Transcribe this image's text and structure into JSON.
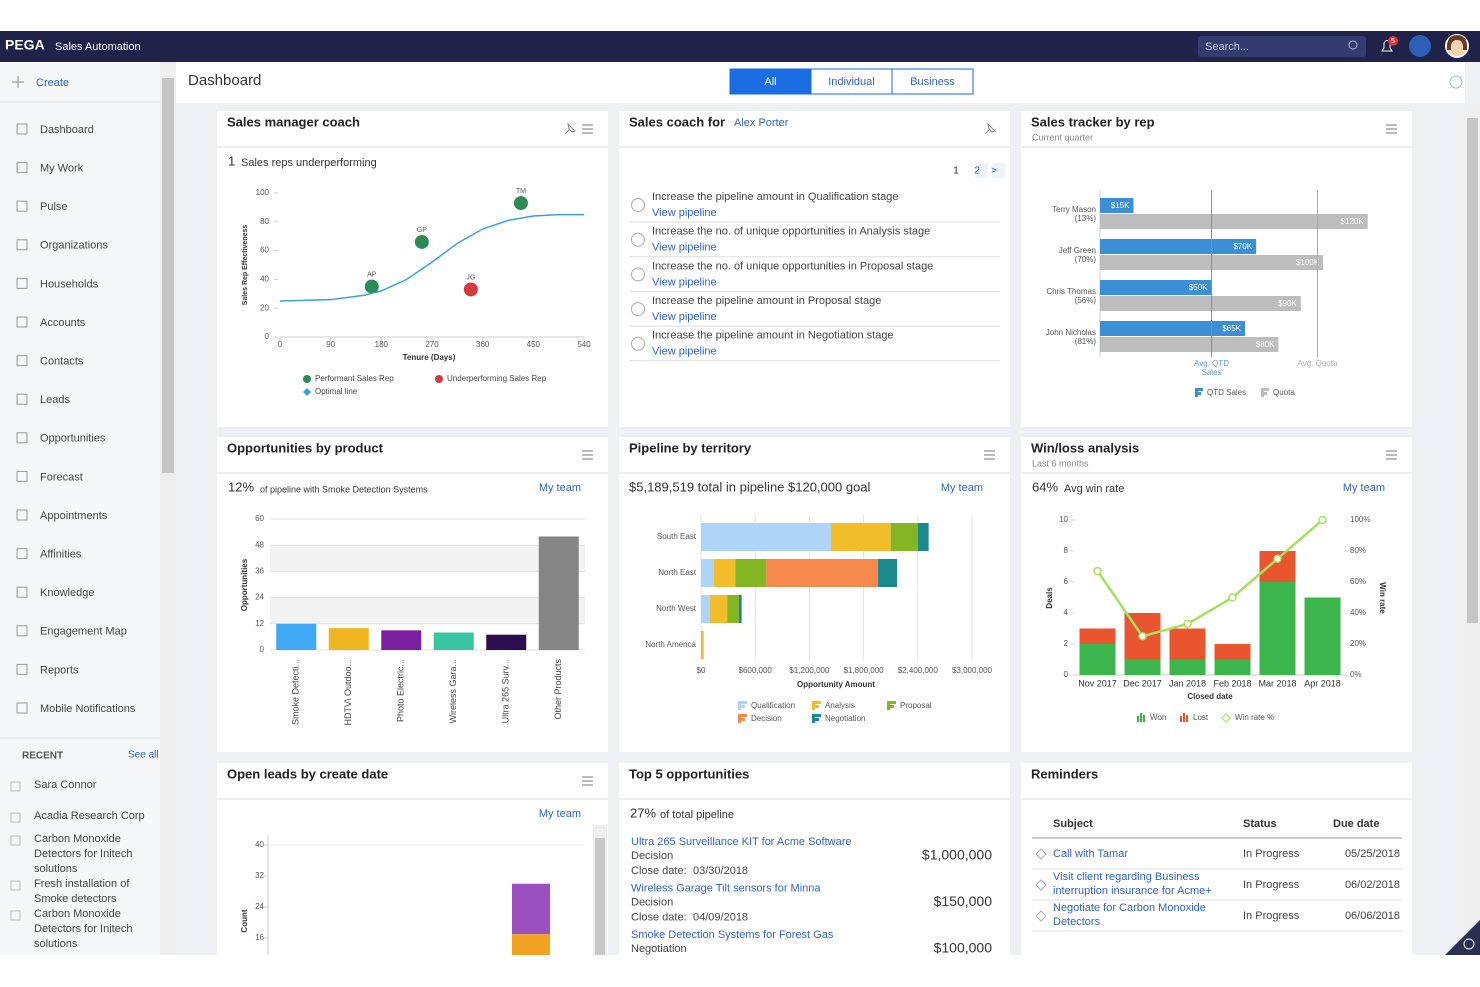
{
  "header": {
    "brand": "PEGA",
    "app": "Sales Automation",
    "search": "Search...",
    "notifications": "5"
  },
  "sidebar": {
    "create": "Create",
    "nav": [
      "Dashboard",
      "My Work",
      "Pulse",
      "Organizations",
      "Households",
      "Accounts",
      "Contacts",
      "Leads",
      "Opportunities",
      "Forecast",
      "Appointments",
      "Affinities",
      "Knowledge",
      "Engagement Map",
      "Reports",
      "Mobile Notifications"
    ],
    "recent_title": "RECENT",
    "see_all": "See all",
    "recent": [
      "Sara Connor",
      "Acadia Research Corp",
      "Carbon Monoxide Detectors for Initech solutions",
      "Fresh installation of Smoke detectors",
      "Carbon Monoxide Detectors for Initech solutions"
    ]
  },
  "toolbar": {
    "title": "Dashboard",
    "tabs": [
      "All",
      "Individual",
      "Business"
    ]
  },
  "coach": {
    "title": "Sales manager coach",
    "count": 1,
    "summary": "Sales reps underperforming",
    "chart": {
      "type": "scatter",
      "x_label": "Tenure (Days)",
      "y_label": "Sales Rep Effectiveness",
      "xlim": [
        0,
        540
      ],
      "xticks": [
        0,
        90,
        180,
        270,
        360,
        450,
        540
      ],
      "ylim": [
        0,
        100
      ],
      "yticks": [
        0,
        20,
        40,
        60,
        80,
        100
      ],
      "series": [
        {
          "name": "Performant Sales Rep",
          "color": "#2e8b57",
          "x": [
            163,
            252,
            428
          ],
          "values": [
            35,
            66,
            93
          ],
          "point_labels": [
            "AP",
            "GP",
            "TM"
          ]
        },
        {
          "name": "Underperforming Sales Rep",
          "color": "#d63a3f",
          "x": [
            339
          ],
          "values": [
            33
          ],
          "point_labels": [
            "JG"
          ]
        },
        {
          "name": "Optimal line",
          "type": "line",
          "color": "#3aa3dc",
          "x": [
            0,
            90,
            150,
            180,
            225,
            270,
            315,
            360,
            405,
            450,
            495,
            540
          ],
          "values": [
            25,
            26,
            29,
            32,
            40,
            52,
            65,
            75,
            81,
            84,
            85,
            85
          ]
        }
      ]
    }
  },
  "coach_for": {
    "title": "Sales coach for",
    "rep": "Alex Porter",
    "pages": [
      "1",
      "2",
      ">"
    ],
    "tasks": [
      {
        "text": "Increase the pipeline amount in Qualification stage",
        "link": "View pipeline"
      },
      {
        "text": "Increase the no. of unique opportunities in Analysis stage",
        "link": "View pipeline"
      },
      {
        "text": "Increase the no. of unique opportunities in Proposal stage",
        "link": "View pipeline"
      },
      {
        "text": "Increase the pipeline amount in Proposal stage",
        "link": "View pipeline"
      },
      {
        "text": "Increase the pipeline amount in Negotiation stage",
        "link": "View pipeline"
      }
    ]
  },
  "tracker": {
    "title": "Sales tracker by rep",
    "subtitle": "Current quarter",
    "chart": {
      "type": "hbar",
      "categories": [
        "Terry Mason",
        "Jeff Green",
        "Chris Thomas",
        "John Nicholas"
      ],
      "category_notes": [
        "(13%)",
        "(70%)",
        "(56%)",
        "(81%)"
      ],
      "xlim": [
        0,
        130000
      ],
      "series": [
        {
          "name": "QTD Sales",
          "color": "#3b8fd6",
          "values": [
            15000,
            70000,
            50000,
            65000
          ],
          "value_labels": [
            "$15K",
            "$70K",
            "$50K",
            "$65K"
          ]
        },
        {
          "name": "Quota",
          "color": "#bdbdbd",
          "values": [
            120000,
            100000,
            90000,
            80000
          ],
          "value_labels": [
            "$120K",
            "$100K",
            "$90K",
            "$80K"
          ]
        }
      ],
      "reference_lines": [
        {
          "label": "Avg. QTD Sales",
          "value": 50000,
          "color": "#5b9bd5"
        },
        {
          "label": "Avg. Quota",
          "value": 97500,
          "color": "#aaaaaa"
        }
      ]
    }
  },
  "products": {
    "title": "Opportunities by product",
    "stat": "12%",
    "summary": "of pipeline with Smoke Detection Systems",
    "link": "My team",
    "chart": {
      "type": "bar",
      "y_label": "Opportunities",
      "categories": [
        "Smoke Detecti...",
        "HDTV\\ Outdoo...",
        "Photo Electric...",
        "Wireless Gara...",
        "Ultra 265 Surv...",
        "Other Products"
      ],
      "values": [
        12,
        10,
        9,
        8,
        7,
        52
      ],
      "colors": [
        "#3fa9f5",
        "#f0b521",
        "#7a1fa2",
        "#36c5a0",
        "#2a0f4c",
        "#858585"
      ],
      "ylim": [
        0,
        60
      ],
      "yticks": [
        0,
        12,
        24,
        36,
        48,
        60
      ]
    }
  },
  "territory": {
    "title": "Pipeline by territory",
    "summary": "$5,189,519 total in pipeline $120,000 goal",
    "link": "My team",
    "chart": {
      "type": "stacked-hbar",
      "x_label": "Opportunity Amount",
      "categories": [
        "South East",
        "North East",
        "North West",
        "North America"
      ],
      "xlim": [
        0,
        3000000
      ],
      "xticks": [
        {
          "value": 0,
          "label": "$0"
        },
        {
          "value": 600000,
          "label": "$600,000"
        },
        {
          "value": 1200000,
          "label": "$1,200,000"
        },
        {
          "value": 1800000,
          "label": "$1,800,000"
        },
        {
          "value": 2400000,
          "label": "$2,400,000"
        },
        {
          "value": 3000000,
          "label": "$3,000,000"
        }
      ],
      "series": [
        {
          "name": "Qualification",
          "color": "#aed4f7",
          "values": [
            1440000,
            140000,
            100000,
            0
          ]
        },
        {
          "name": "Analysis",
          "color": "#f2bd2a",
          "values": [
            660000,
            240000,
            190000,
            30000
          ]
        },
        {
          "name": "Proposal",
          "color": "#84b523",
          "values": [
            300000,
            340000,
            130000,
            0
          ]
        },
        {
          "name": "Decision",
          "color": "#f58a4c",
          "values": [
            0,
            1240000,
            0,
            0
          ]
        },
        {
          "name": "Negotiation",
          "color": "#1b8a8f",
          "values": [
            120000,
            210000,
            30000,
            0
          ]
        }
      ]
    }
  },
  "winloss": {
    "title": "Win/loss analysis",
    "subtitle": "Last 6 months",
    "stat": "64%",
    "summary": "Avg win rate",
    "link": "My team",
    "chart": {
      "type": "stacked-bar",
      "x_label": "Closed date",
      "y_label": "Deals",
      "y2_label": "Win rate",
      "categories": [
        "Nov 2017",
        "Dec 2017",
        "Jan 2018",
        "Feb 2018",
        "Mar 2018",
        "Apr 2018"
      ],
      "ylim": [
        0,
        10
      ],
      "yticks": [
        0,
        2,
        4,
        6,
        8,
        10
      ],
      "y2lim": [
        0,
        100
      ],
      "y2ticks": [
        {
          "value": 0,
          "label": "0%"
        },
        {
          "value": 20,
          "label": "20%"
        },
        {
          "value": 40,
          "label": "40%"
        },
        {
          "value": 60,
          "label": "60%"
        },
        {
          "value": 80,
          "label": "80%"
        },
        {
          "value": 100,
          "label": "100%"
        }
      ],
      "series": [
        {
          "name": "Won",
          "color": "#3cb64a",
          "values": [
            2,
            1,
            1,
            1,
            6,
            5
          ]
        },
        {
          "name": "Lost",
          "color": "#e8552e",
          "values": [
            1,
            3,
            2,
            1,
            2,
            0
          ]
        },
        {
          "name": "Win rate %",
          "type": "line",
          "axis": "y2",
          "color": "#a6e05c",
          "values": [
            67,
            25,
            33,
            50,
            75,
            100
          ]
        }
      ]
    }
  },
  "leads": {
    "title": "Open leads by create date",
    "link": "My team",
    "chart": {
      "type": "stacked-bar",
      "y_label": "Count",
      "ylim": [
        0,
        40
      ],
      "yticks": [
        16,
        24,
        32,
        40
      ],
      "series": [
        {
          "color": "#f2a324",
          "values": [
            17
          ]
        },
        {
          "color": "#9b50c0",
          "values": [
            13
          ]
        }
      ]
    }
  },
  "top5": {
    "title": "Top 5 opportunities",
    "stat": "27%",
    "summary": "of total pipeline",
    "items": [
      {
        "name": "Ultra 265 Surveillance KIT for Acme Software",
        "stage": "Decision",
        "close_label": "Close date:",
        "close": "03/30/2018",
        "amount": "$1,000,000"
      },
      {
        "name": "Wireless Garage Tilt sensors for Minna",
        "stage": "Decision",
        "close_label": "Close date:",
        "close": "04/09/2018",
        "amount": "$150,000"
      },
      {
        "name": "Smoke Detection Systems for Forest Gas",
        "stage": "Negotiation",
        "amount": "$100,000"
      }
    ]
  },
  "reminders": {
    "title": "Reminders",
    "columns": [
      "Subject",
      "Status",
      "Due date"
    ],
    "rows": [
      [
        "Call with Tamar",
        "In Progress",
        "05/25/2018"
      ],
      [
        "Visit client regarding Business interruption insurance for Acme+",
        "In Progress",
        "06/02/2018"
      ],
      [
        "Negotiate for Carbon Monoxide Detectors",
        "In Progress",
        "06/06/2018"
      ]
    ]
  }
}
